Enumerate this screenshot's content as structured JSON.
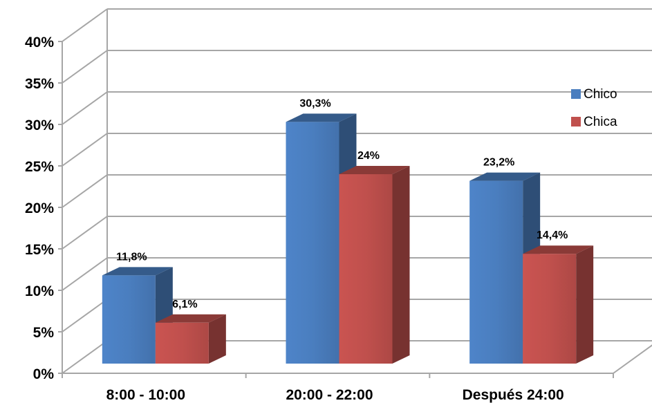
{
  "chart_data": {
    "type": "bar",
    "categories": [
      "8:00 - 10:00",
      "20:00 - 22:00",
      "Después 24:00"
    ],
    "series": [
      {
        "name": "Chico",
        "values": [
          11.8,
          30.3,
          23.2
        ],
        "labels": [
          "11,8%",
          "30,3%",
          "23,2%"
        ],
        "color": "#4a7ebf"
      },
      {
        "name": "Chica",
        "values": [
          6.1,
          24,
          14.4
        ],
        "labels": [
          "6,1%",
          "24%",
          "14,4%"
        ],
        "color": "#c0504d"
      }
    ],
    "ylim": [
      0,
      40
    ],
    "yticks": [
      0,
      5,
      10,
      15,
      20,
      25,
      30,
      35,
      40
    ],
    "ytick_labels": [
      "0%",
      "5%",
      "10%",
      "15%",
      "20%",
      "25%",
      "30%",
      "35%",
      "40%"
    ],
    "title": "",
    "xlabel": "",
    "ylabel": "",
    "grid": true,
    "legend_position": "right",
    "style": "3d-bar"
  }
}
